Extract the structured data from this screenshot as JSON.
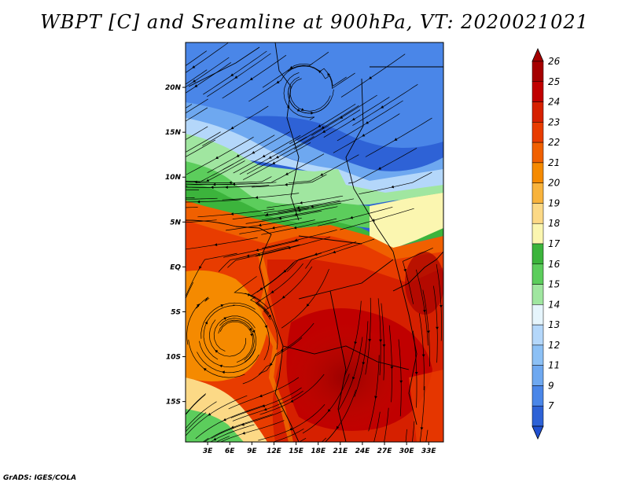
{
  "title": "WBPT [C] and Sreamline at 900hPa, VT: 2020021021",
  "credit": "GrADS: IGES/COLA",
  "map": {
    "lat_labels": [
      "20N",
      "15N",
      "10N",
      "5N",
      "EQ",
      "5S",
      "10S",
      "15S"
    ],
    "lat_values": [
      20,
      15,
      10,
      5,
      0,
      -5,
      -10,
      -15
    ],
    "lon_labels": [
      "3E",
      "6E",
      "9E",
      "12E",
      "15E",
      "18E",
      "21E",
      "24E",
      "27E",
      "30E",
      "33E"
    ],
    "lon_values": [
      3,
      6,
      9,
      12,
      15,
      18,
      21,
      24,
      27,
      30,
      33
    ],
    "extent": {
      "lon_min": 0,
      "lon_max": 35,
      "lat_min": -19.5,
      "lat_max": 25
    }
  },
  "colorbar": {
    "labels": [
      "26",
      "25",
      "24",
      "23",
      "22",
      "21",
      "20",
      "19",
      "18",
      "17",
      "16",
      "15",
      "14",
      "13",
      "12",
      "11",
      "9",
      "7"
    ],
    "colors": [
      "#a50000",
      "#c00000",
      "#d62000",
      "#e83c00",
      "#f06000",
      "#f58a00",
      "#f8b33c",
      "#fcd986",
      "#fbf6b0",
      "#3cb43c",
      "#5ccd5c",
      "#a0e6a0",
      "#e6f5fc",
      "#b4d7fa",
      "#8cc0f5",
      "#6ea8f0",
      "#4a86e8",
      "#2e62d6"
    ],
    "top_color": "#a50000",
    "bottom_color": "#2050d0"
  }
}
